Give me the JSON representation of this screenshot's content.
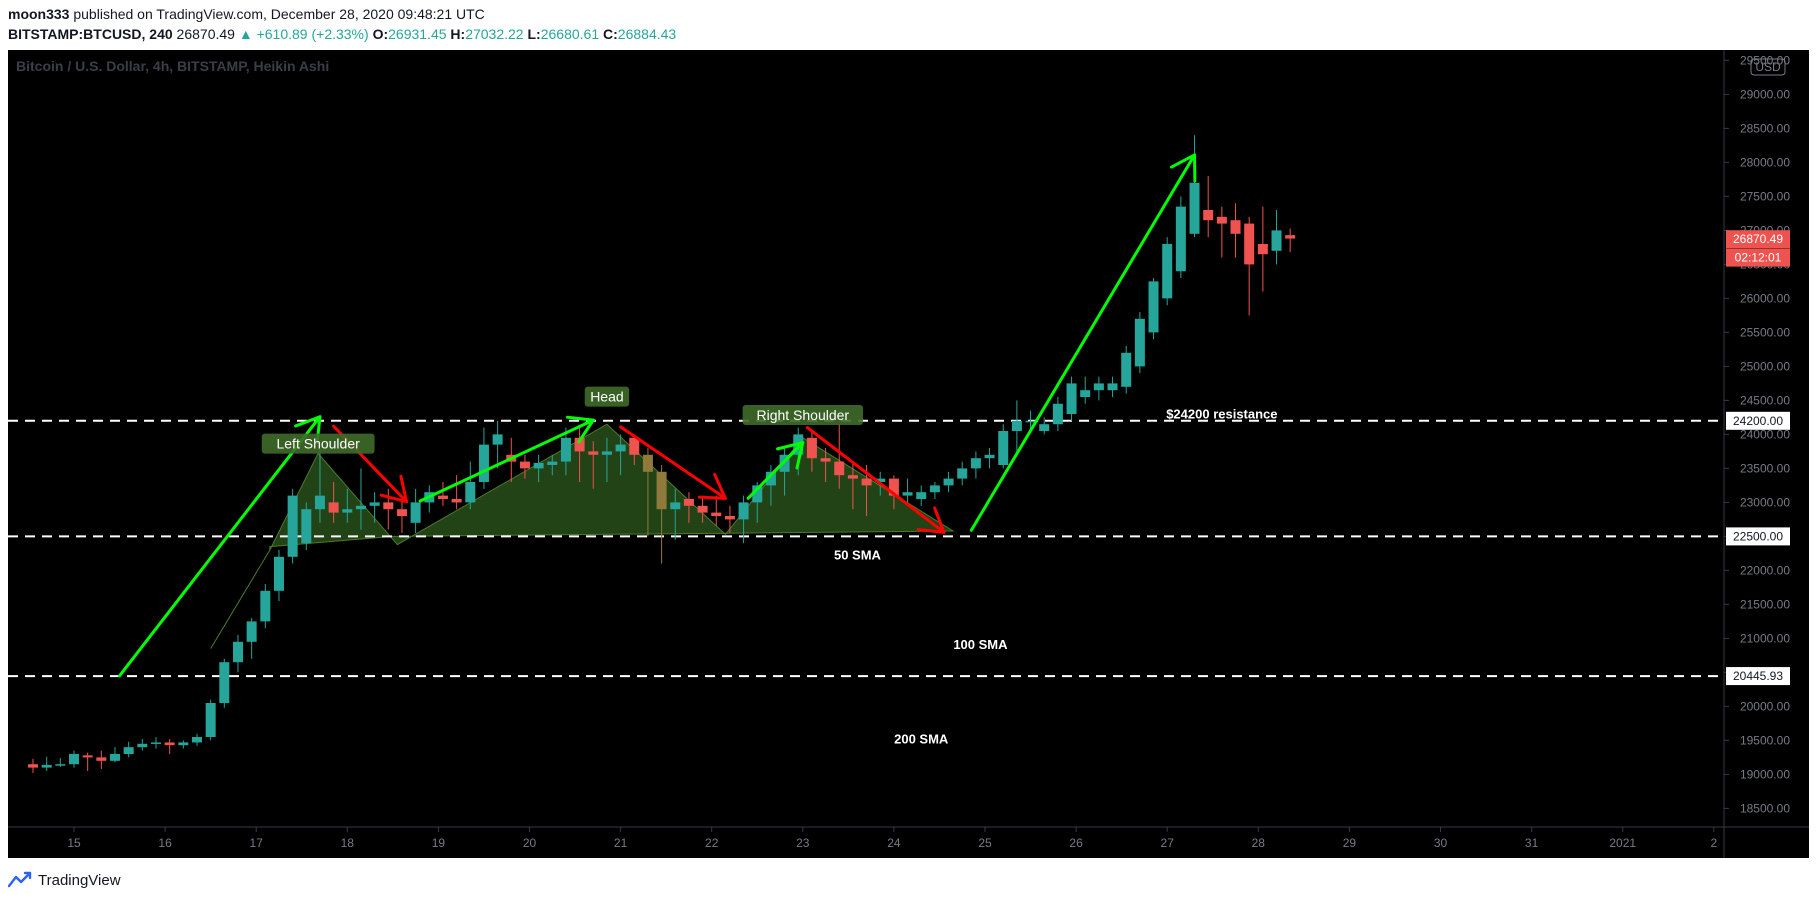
{
  "header": {
    "author": "moon333",
    "published_text": "published on TradingView.com, December 28, 2020 09:48:21 UTC",
    "symbol": "BITSTAMP:BTCUSD, 240",
    "last_price": "26870.49",
    "change": "▲ +610.89 (+2.33%)",
    "open_label": "O:",
    "open": "26931.45",
    "high_label": "H:",
    "high": "27032.22",
    "low_label": "L:",
    "low": "26680.61",
    "close_label": "C:",
    "close": "26884.43"
  },
  "footer": {
    "brand": "TradingView",
    "logo_icon": "tradingview-logo-icon"
  },
  "chart_data": {
    "type": "candlestick",
    "title": "Bitcoin / U.S. Dollar, 4h, BITSTAMP, Heikin Ashi",
    "currency_label": "USD",
    "xlabel": "",
    "ylabel": "",
    "ylim": [
      18000,
      29600
    ],
    "x_ticks": [
      "15",
      "16",
      "17",
      "18",
      "19",
      "20",
      "21",
      "22",
      "23",
      "24",
      "25",
      "26",
      "27",
      "28",
      "29",
      "30",
      "31",
      "2021",
      "2"
    ],
    "y_ticks": [
      "29500.00",
      "29000.00",
      "28500.00",
      "28000.00",
      "27500.00",
      "27000.00",
      "26500.00",
      "26000.00",
      "25500.00",
      "25000.00",
      "24500.00",
      "24000.00",
      "23500.00",
      "23000.00",
      "22500.00",
      "22000.00",
      "21500.00",
      "21000.00",
      "20500.00",
      "20000.00",
      "19500.00",
      "19000.00",
      "18500.00"
    ],
    "price_labels": [
      {
        "text": "26870.49",
        "value": 26870.49,
        "color": "#ef5350"
      },
      {
        "text": "02:12:01",
        "value": 26600,
        "color": "#ef5350"
      },
      {
        "text": "24200.00",
        "value": 24200,
        "color": "#ffffff"
      },
      {
        "text": "22500.00",
        "value": 22500,
        "color": "#ffffff"
      },
      {
        "text": "20445.93",
        "value": 20445.93,
        "color": "#ffffff"
      }
    ],
    "horizontal_lines": [
      24200,
      22500,
      20445.93
    ],
    "annotations": [
      {
        "text": "Left Shoulder",
        "day": 17.68,
        "price": 23850,
        "boxed": true
      },
      {
        "text": "Head",
        "day": 20.85,
        "price": 24540,
        "boxed": true
      },
      {
        "text": "Right Shoulder",
        "day": 23.0,
        "price": 24270,
        "boxed": true
      },
      {
        "text": "$24200 resistance",
        "day": 27.6,
        "price": 24290,
        "boxed": false
      },
      {
        "text": "50 SMA",
        "day": 23.6,
        "price": 22220,
        "boxed": false
      },
      {
        "text": "100 SMA",
        "day": 24.95,
        "price": 20900,
        "boxed": false
      },
      {
        "text": "200 SMA",
        "day": 24.3,
        "price": 19510,
        "boxed": false
      }
    ],
    "colors": {
      "up": "#26a69a",
      "down": "#ef5350",
      "up_pattern": "#8f7a3c",
      "down_pattern": "#8f7a3c",
      "pattern_fill": "#2e5a1c",
      "green_arrow": "#00ff00",
      "red_arrow": "#ff0000",
      "background": "#000000"
    },
    "candles": [
      {
        "d": 14.55,
        "o": 19150,
        "h": 19230,
        "l": 19020,
        "c": 19100
      },
      {
        "d": 14.7,
        "o": 19100,
        "h": 19260,
        "l": 19050,
        "c": 19140
      },
      {
        "d": 14.85,
        "o": 19140,
        "h": 19240,
        "l": 19110,
        "c": 19150
      },
      {
        "d": 15.0,
        "o": 19150,
        "h": 19350,
        "l": 19100,
        "c": 19300
      },
      {
        "d": 15.15,
        "o": 19280,
        "h": 19320,
        "l": 19050,
        "c": 19250
      },
      {
        "d": 15.3,
        "o": 19250,
        "h": 19350,
        "l": 19080,
        "c": 19200
      },
      {
        "d": 15.45,
        "o": 19200,
        "h": 19400,
        "l": 19180,
        "c": 19300
      },
      {
        "d": 15.6,
        "o": 19300,
        "h": 19480,
        "l": 19250,
        "c": 19400
      },
      {
        "d": 15.75,
        "o": 19400,
        "h": 19520,
        "l": 19350,
        "c": 19450
      },
      {
        "d": 15.9,
        "o": 19450,
        "h": 19550,
        "l": 19380,
        "c": 19470
      },
      {
        "d": 16.05,
        "o": 19470,
        "h": 19520,
        "l": 19300,
        "c": 19430
      },
      {
        "d": 16.2,
        "o": 19430,
        "h": 19500,
        "l": 19380,
        "c": 19470
      },
      {
        "d": 16.35,
        "o": 19470,
        "h": 19600,
        "l": 19420,
        "c": 19550
      },
      {
        "d": 16.5,
        "o": 19550,
        "h": 20100,
        "l": 19500,
        "c": 20050
      },
      {
        "d": 16.65,
        "o": 20050,
        "h": 20700,
        "l": 19980,
        "c": 20650
      },
      {
        "d": 16.8,
        "o": 20650,
        "h": 21050,
        "l": 20500,
        "c": 20950
      },
      {
        "d": 16.95,
        "o": 20950,
        "h": 21300,
        "l": 20700,
        "c": 21250
      },
      {
        "d": 17.1,
        "o": 21250,
        "h": 21800,
        "l": 21150,
        "c": 21700
      },
      {
        "d": 17.25,
        "o": 21700,
        "h": 22300,
        "l": 21550,
        "c": 22200
      },
      {
        "d": 17.4,
        "o": 22200,
        "h": 23200,
        "l": 22100,
        "c": 23100
      },
      {
        "d": 17.55,
        "o": 22400,
        "h": 23000,
        "l": 22300,
        "c": 22900
      },
      {
        "d": 17.7,
        "o": 22900,
        "h": 23800,
        "l": 22700,
        "c": 23100
      },
      {
        "d": 17.85,
        "o": 23000,
        "h": 23300,
        "l": 22700,
        "c": 22850
      },
      {
        "d": 18.0,
        "o": 22850,
        "h": 23200,
        "l": 22700,
        "c": 22900
      },
      {
        "d": 18.15,
        "o": 22900,
        "h": 23500,
        "l": 22600,
        "c": 22950
      },
      {
        "d": 18.3,
        "o": 22950,
        "h": 23150,
        "l": 22700,
        "c": 23000
      },
      {
        "d": 18.45,
        "o": 23000,
        "h": 23200,
        "l": 22600,
        "c": 22900
      },
      {
        "d": 18.6,
        "o": 22900,
        "h": 23050,
        "l": 22550,
        "c": 22800
      },
      {
        "d": 18.75,
        "o": 22700,
        "h": 23200,
        "l": 22550,
        "c": 23000
      },
      {
        "d": 18.9,
        "o": 23000,
        "h": 23250,
        "l": 22850,
        "c": 23150
      },
      {
        "d": 19.05,
        "o": 23100,
        "h": 23300,
        "l": 22950,
        "c": 23050
      },
      {
        "d": 19.2,
        "o": 23050,
        "h": 23400,
        "l": 22900,
        "c": 23000
      },
      {
        "d": 19.35,
        "o": 23000,
        "h": 23600,
        "l": 22900,
        "c": 23300
      },
      {
        "d": 19.5,
        "o": 23300,
        "h": 24100,
        "l": 23200,
        "c": 23850
      },
      {
        "d": 19.65,
        "o": 23850,
        "h": 24200,
        "l": 23500,
        "c": 24000
      },
      {
        "d": 19.8,
        "o": 23700,
        "h": 23950,
        "l": 23300,
        "c": 23600
      },
      {
        "d": 19.95,
        "o": 23600,
        "h": 23700,
        "l": 23350,
        "c": 23500
      },
      {
        "d": 20.1,
        "o": 23500,
        "h": 23700,
        "l": 23300,
        "c": 23580
      },
      {
        "d": 20.25,
        "o": 23550,
        "h": 23700,
        "l": 23400,
        "c": 23600
      },
      {
        "d": 20.4,
        "o": 23600,
        "h": 24100,
        "l": 23400,
        "c": 23950
      },
      {
        "d": 20.55,
        "o": 23950,
        "h": 24100,
        "l": 23300,
        "c": 23750
      },
      {
        "d": 20.7,
        "o": 23750,
        "h": 23900,
        "l": 23200,
        "c": 23700
      },
      {
        "d": 20.85,
        "o": 23700,
        "h": 23950,
        "l": 23300,
        "c": 23750
      },
      {
        "d": 21.0,
        "o": 23750,
        "h": 24000,
        "l": 23400,
        "c": 23850
      },
      {
        "d": 21.15,
        "o": 23950,
        "h": 24000,
        "l": 23550,
        "c": 23700
      },
      {
        "d": 21.3,
        "o": 23700,
        "h": 23800,
        "l": 22500,
        "c": 23450
      },
      {
        "d": 21.45,
        "o": 23450,
        "h": 23550,
        "l": 22100,
        "c": 22900
      },
      {
        "d": 21.6,
        "o": 22900,
        "h": 23200,
        "l": 22450,
        "c": 23000
      },
      {
        "d": 21.75,
        "o": 23050,
        "h": 23150,
        "l": 22700,
        "c": 22950
      },
      {
        "d": 21.9,
        "o": 22950,
        "h": 23100,
        "l": 22700,
        "c": 22850
      },
      {
        "d": 22.05,
        "o": 22850,
        "h": 23100,
        "l": 22650,
        "c": 22800
      },
      {
        "d": 22.2,
        "o": 22800,
        "h": 22950,
        "l": 22550,
        "c": 22750
      },
      {
        "d": 22.35,
        "o": 22750,
        "h": 23100,
        "l": 22400,
        "c": 23000
      },
      {
        "d": 22.5,
        "o": 23000,
        "h": 23300,
        "l": 22700,
        "c": 23250
      },
      {
        "d": 22.65,
        "o": 23250,
        "h": 23550,
        "l": 22950,
        "c": 23450
      },
      {
        "d": 22.8,
        "o": 23450,
        "h": 23800,
        "l": 23100,
        "c": 23700
      },
      {
        "d": 22.95,
        "o": 23700,
        "h": 24100,
        "l": 23400,
        "c": 24000
      },
      {
        "d": 23.1,
        "o": 23950,
        "h": 24050,
        "l": 23450,
        "c": 23650
      },
      {
        "d": 23.25,
        "o": 23650,
        "h": 23800,
        "l": 23300,
        "c": 23600
      },
      {
        "d": 23.4,
        "o": 23600,
        "h": 24150,
        "l": 23200,
        "c": 23400
      },
      {
        "d": 23.55,
        "o": 23400,
        "h": 23600,
        "l": 22900,
        "c": 23350
      },
      {
        "d": 23.7,
        "o": 23350,
        "h": 23550,
        "l": 22800,
        "c": 23250
      },
      {
        "d": 23.85,
        "o": 23300,
        "h": 23450,
        "l": 23100,
        "c": 23350
      },
      {
        "d": 24.0,
        "o": 23350,
        "h": 23400,
        "l": 22900,
        "c": 23100
      },
      {
        "d": 24.15,
        "o": 23100,
        "h": 23350,
        "l": 22950,
        "c": 23150
      },
      {
        "d": 24.3,
        "o": 23050,
        "h": 23250,
        "l": 22950,
        "c": 23150
      },
      {
        "d": 24.45,
        "o": 23150,
        "h": 23300,
        "l": 23050,
        "c": 23250
      },
      {
        "d": 24.6,
        "o": 23250,
        "h": 23450,
        "l": 23150,
        "c": 23350
      },
      {
        "d": 24.75,
        "o": 23350,
        "h": 23600,
        "l": 23250,
        "c": 23500
      },
      {
        "d": 24.9,
        "o": 23500,
        "h": 23750,
        "l": 23350,
        "c": 23650
      },
      {
        "d": 25.05,
        "o": 23650,
        "h": 23800,
        "l": 23500,
        "c": 23700
      },
      {
        "d": 25.2,
        "o": 23550,
        "h": 24150,
        "l": 23500,
        "c": 24050
      },
      {
        "d": 25.35,
        "o": 24050,
        "h": 24500,
        "l": 23700,
        "c": 24200
      },
      {
        "d": 25.5,
        "o": 24200,
        "h": 24350,
        "l": 24050,
        "c": 24200
      },
      {
        "d": 25.65,
        "o": 24050,
        "h": 24250,
        "l": 24000,
        "c": 24150
      },
      {
        "d": 25.8,
        "o": 24150,
        "h": 24550,
        "l": 24050,
        "c": 24450
      },
      {
        "d": 25.95,
        "o": 24300,
        "h": 24850,
        "l": 24200,
        "c": 24750
      },
      {
        "d": 26.1,
        "o": 24550,
        "h": 24850,
        "l": 24450,
        "c": 24650
      },
      {
        "d": 26.25,
        "o": 24650,
        "h": 24850,
        "l": 24500,
        "c": 24750
      },
      {
        "d": 26.4,
        "o": 24650,
        "h": 24850,
        "l": 24550,
        "c": 24750
      },
      {
        "d": 26.55,
        "o": 24700,
        "h": 25300,
        "l": 24600,
        "c": 25200
      },
      {
        "d": 26.7,
        "o": 25000,
        "h": 25800,
        "l": 24900,
        "c": 25700
      },
      {
        "d": 26.85,
        "o": 25500,
        "h": 26300,
        "l": 25400,
        "c": 26250
      },
      {
        "d": 27.0,
        "o": 26000,
        "h": 26900,
        "l": 25900,
        "c": 26800
      },
      {
        "d": 27.15,
        "o": 26400,
        "h": 27500,
        "l": 26300,
        "c": 27350
      },
      {
        "d": 27.3,
        "o": 26950,
        "h": 28400,
        "l": 26900,
        "c": 27700
      },
      {
        "d": 27.45,
        "o": 27300,
        "h": 27800,
        "l": 26900,
        "c": 27150
      },
      {
        "d": 27.6,
        "o": 27200,
        "h": 27350,
        "l": 26600,
        "c": 27100
      },
      {
        "d": 27.75,
        "o": 27150,
        "h": 27400,
        "l": 26600,
        "c": 26950
      },
      {
        "d": 27.9,
        "o": 27100,
        "h": 27200,
        "l": 25750,
        "c": 26500
      },
      {
        "d": 28.05,
        "o": 26800,
        "h": 27350,
        "l": 26100,
        "c": 26650
      },
      {
        "d": 28.2,
        "o": 26700,
        "h": 27300,
        "l": 26500,
        "c": 27000
      },
      {
        "d": 28.35,
        "o": 26930,
        "h": 27030,
        "l": 26680,
        "c": 26880
      }
    ]
  }
}
